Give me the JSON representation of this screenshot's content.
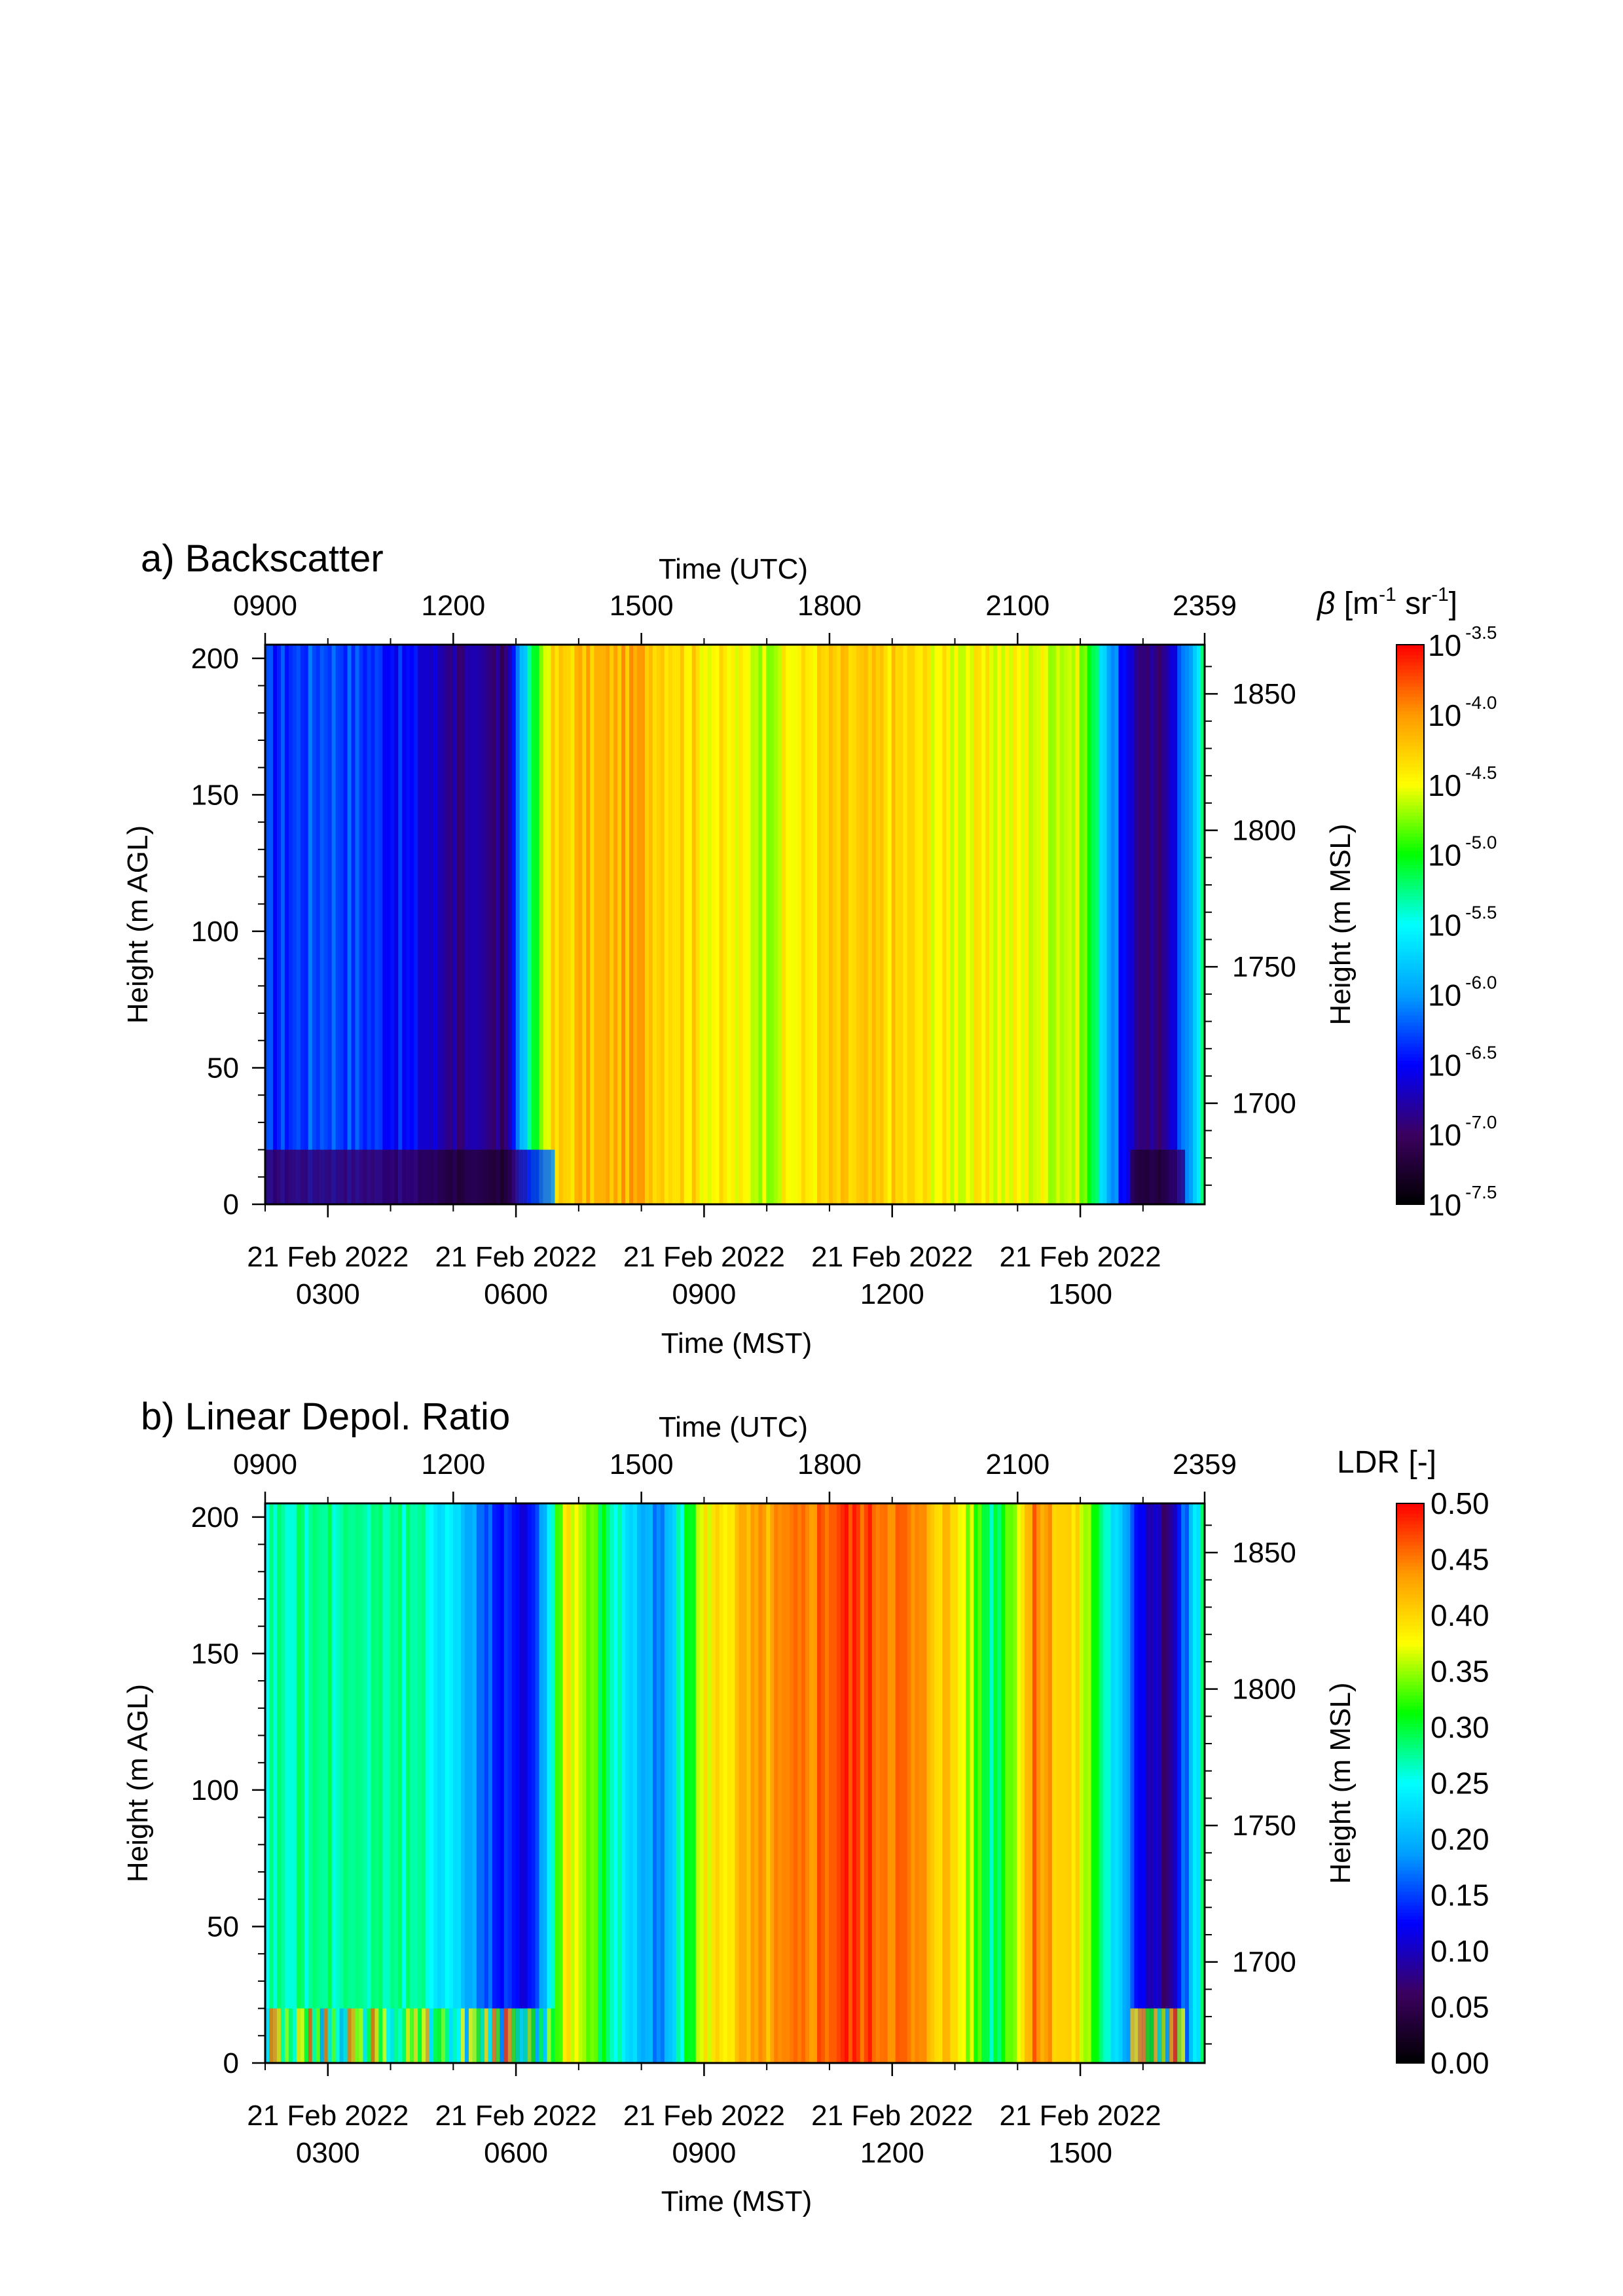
{
  "chart_data": [
    {
      "type": "heatmap",
      "title": "a) Backscatter",
      "top_axis_label": "Time (UTC)",
      "top_tick_labels": [
        "0900",
        "1200",
        "1500",
        "1800",
        "2100",
        "2359"
      ],
      "bottom_axis_label": "Time (MST)",
      "bottom_tick_labels": [
        [
          "21 Feb 2022",
          "0300"
        ],
        [
          "21 Feb 2022",
          "0600"
        ],
        [
          "21 Feb 2022",
          "0900"
        ],
        [
          "21 Feb 2022",
          "1200"
        ],
        [
          "21 Feb 2022",
          "1500"
        ]
      ],
      "ylabel": "Height (m AGL)",
      "y_ticks": [
        0,
        50,
        100,
        150,
        200
      ],
      "ylim": [
        0,
        205
      ],
      "y2label": "Height (m MSL)",
      "y2_ticks": [
        1700,
        1750,
        1800,
        1850
      ],
      "colorbar": {
        "label": "β [m⁻¹ sr⁻¹]",
        "scale": "log",
        "tick_exponents": [
          "-7.5",
          "-7.0",
          "-6.5",
          "-6.0",
          "-5.5",
          "-5.0",
          "-4.5",
          "-4.0",
          "-3.5"
        ],
        "colormap": [
          "#000000",
          "#3b0060",
          "#0000ff",
          "#00a0ff",
          "#00ffff",
          "#00ff00",
          "#ffff00",
          "#ff9900",
          "#ff0000"
        ]
      },
      "time_utc_hours": [
        9,
        10,
        11,
        12,
        12.8,
        13.5,
        14,
        15,
        16,
        17,
        18,
        19,
        20,
        21,
        22,
        22.8,
        23.4,
        23.98
      ],
      "log10_beta_approx": [
        -6.4,
        -6.2,
        -6.4,
        -6.8,
        -7.0,
        -4.4,
        -4.2,
        -4.1,
        -4.4,
        -4.6,
        -4.3,
        -4.3,
        -4.5,
        -4.5,
        -4.6,
        -6.8,
        -6.9,
        -5.2
      ],
      "near_surface_layer_m": 20
    },
    {
      "type": "heatmap",
      "title": "b) Linear Depol. Ratio",
      "top_axis_label": "Time (UTC)",
      "top_tick_labels": [
        "0900",
        "1200",
        "1500",
        "1800",
        "2100",
        "2359"
      ],
      "bottom_axis_label": "Time (MST)",
      "bottom_tick_labels": [
        [
          "21 Feb 2022",
          "0300"
        ],
        [
          "21 Feb 2022",
          "0600"
        ],
        [
          "21 Feb 2022",
          "0900"
        ],
        [
          "21 Feb 2022",
          "1200"
        ],
        [
          "21 Feb 2022",
          "1500"
        ]
      ],
      "ylabel": "Height (m AGL)",
      "y_ticks": [
        0,
        50,
        100,
        150,
        200
      ],
      "ylim": [
        0,
        205
      ],
      "y2label": "Height (m MSL)",
      "y2_ticks": [
        1700,
        1750,
        1800,
        1850
      ],
      "colorbar": {
        "label": "LDR [-]",
        "range": [
          0,
          0.5
        ],
        "tick_labels": [
          "0.00",
          "0.05",
          "0.10",
          "0.15",
          "0.20",
          "0.25",
          "0.30",
          "0.35",
          "0.40",
          "0.45",
          "0.50"
        ],
        "colormap": [
          "#000000",
          "#3b0060",
          "#0000ff",
          "#00a0ff",
          "#00ffff",
          "#00ff00",
          "#ffff00",
          "#ff9900",
          "#ff0000"
        ]
      },
      "time_utc_hours": [
        9,
        10,
        11,
        12,
        12.5,
        13.3,
        13.8,
        14.5,
        15.3,
        16,
        16.8,
        17.5,
        18.2,
        19,
        20,
        20.6,
        21.3,
        22,
        22.8,
        23.4,
        23.98
      ],
      "ldr_approx": [
        0.27,
        0.28,
        0.28,
        0.24,
        0.16,
        0.12,
        0.4,
        0.28,
        0.16,
        0.38,
        0.42,
        0.44,
        0.48,
        0.46,
        0.4,
        0.28,
        0.45,
        0.38,
        0.16,
        0.06,
        0.28
      ],
      "near_surface_layer_m": 20
    }
  ]
}
